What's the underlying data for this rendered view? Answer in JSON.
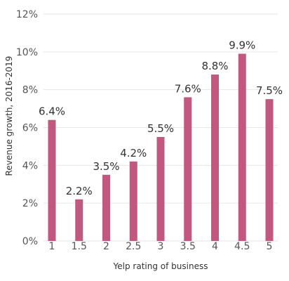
{
  "chart_data": {
    "type": "bar",
    "categories": [
      "1",
      "1.5",
      "2",
      "2.5",
      "3",
      "3.5",
      "4",
      "4.5",
      "5"
    ],
    "values": [
      6.4,
      2.2,
      3.5,
      4.2,
      5.5,
      7.6,
      8.8,
      9.9,
      7.5
    ],
    "data_labels": [
      "6.4%",
      "2.2%",
      "3.5%",
      "4.2%",
      "5.5%",
      "7.6%",
      "8.8%",
      "9.9%",
      "7.5%"
    ],
    "xlabel": "Yelp rating of business",
    "ylabel": "Revenue growth, 2016-2019",
    "ylim": [
      0,
      12
    ],
    "yticks": [
      0,
      2,
      4,
      6,
      8,
      10,
      12
    ],
    "ytick_labels": [
      "0%",
      "2%",
      "4%",
      "6%",
      "8%",
      "10%",
      "12%"
    ],
    "grid": "horizontal",
    "bar_color": "#c2577f"
  }
}
